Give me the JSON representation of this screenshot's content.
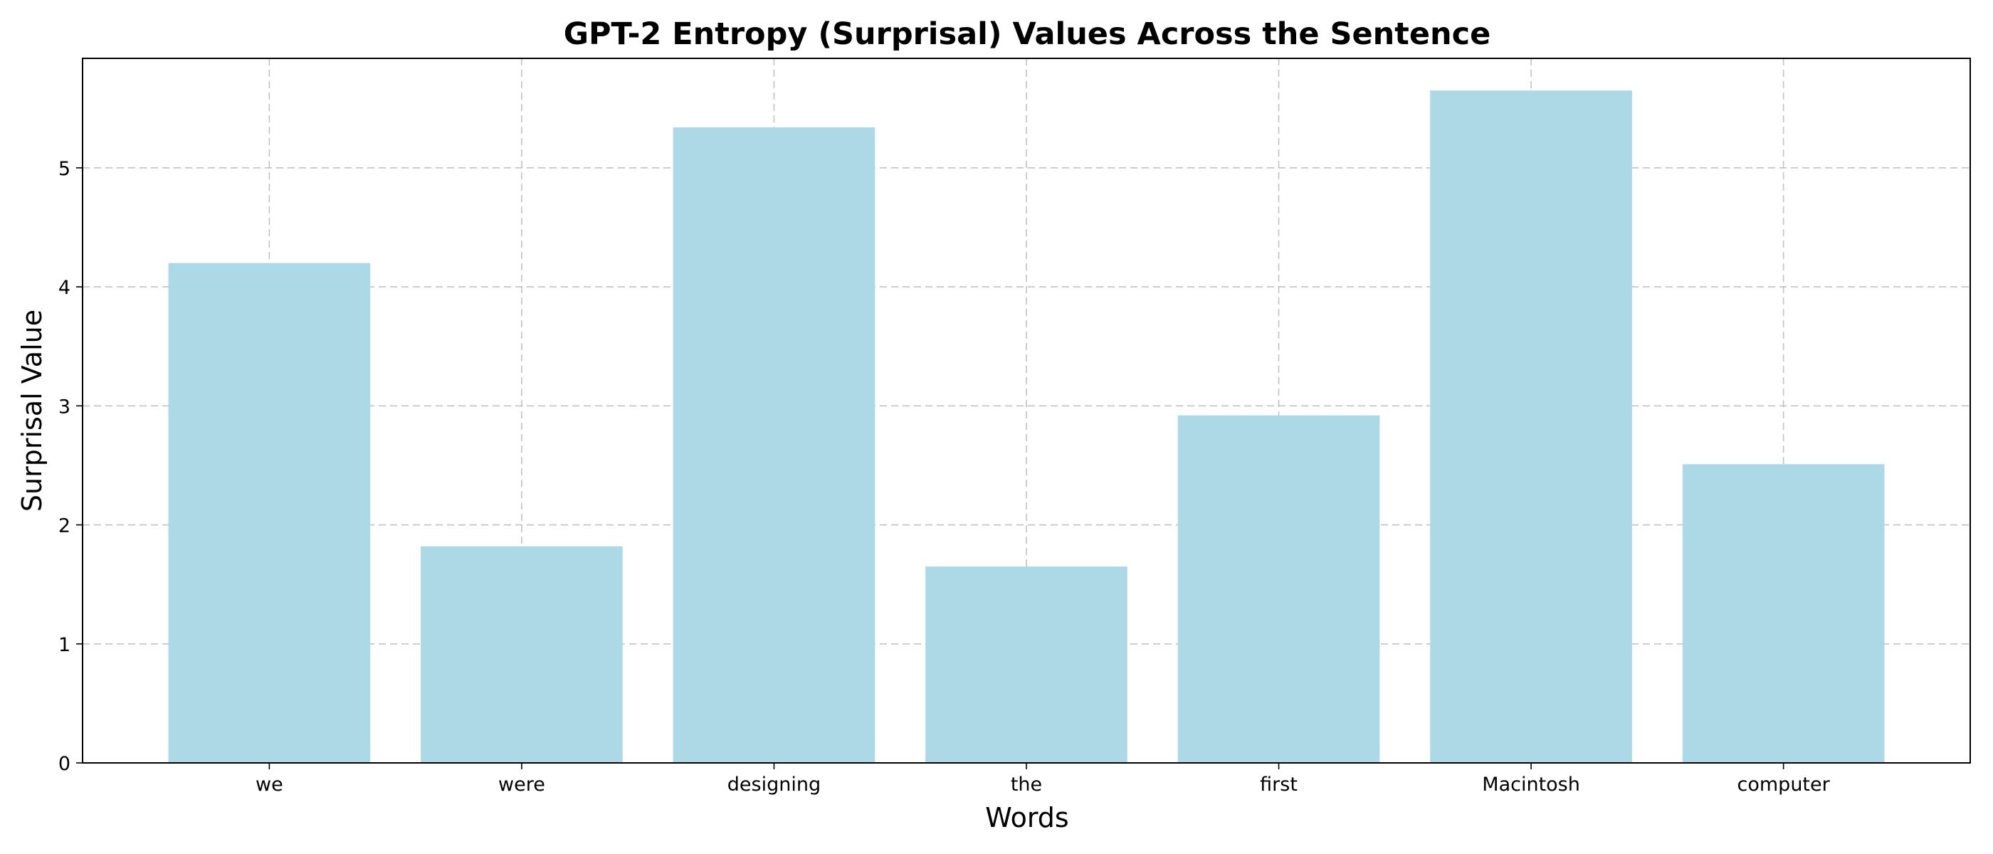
{
  "chart_data": {
    "type": "bar",
    "title": "GPT-2 Entropy (Surprisal) Values Across the Sentence",
    "xlabel": "Words",
    "ylabel": "Surprisal Value",
    "categories": [
      "we",
      "were",
      "designing",
      "the",
      "first",
      "Macintosh",
      "computer"
    ],
    "values": [
      4.2,
      1.82,
      5.34,
      1.65,
      2.92,
      5.65,
      2.51
    ],
    "ylim": [
      0,
      5.92
    ],
    "yticks": [
      0,
      1,
      2,
      3,
      4,
      5
    ],
    "grid": true,
    "bar_color": "#add8e6"
  }
}
